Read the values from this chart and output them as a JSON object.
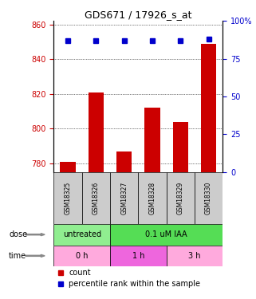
{
  "title": "GDS671 / 17926_s_at",
  "samples": [
    "GSM18325",
    "GSM18326",
    "GSM18327",
    "GSM18328",
    "GSM18329",
    "GSM18330"
  ],
  "bar_values": [
    781,
    821,
    787,
    812,
    804,
    849
  ],
  "percentile_values": [
    87,
    87,
    87,
    87,
    87,
    88
  ],
  "ylim_left": [
    775,
    862
  ],
  "ylim_right": [
    0,
    100
  ],
  "yticks_left": [
    780,
    800,
    820,
    840,
    860
  ],
  "yticks_right": [
    0,
    25,
    50,
    75,
    100
  ],
  "bar_color": "#cc0000",
  "blue_color": "#0000cc",
  "dose_labels": [
    {
      "label": "untreated",
      "start": 0,
      "end": 2,
      "color": "#90ee90"
    },
    {
      "label": "0.1 uM IAA",
      "start": 2,
      "end": 6,
      "color": "#55dd55"
    }
  ],
  "time_labels": [
    {
      "label": "0 h",
      "start": 0,
      "end": 2,
      "color": "#ffaadd"
    },
    {
      "label": "1 h",
      "start": 2,
      "end": 4,
      "color": "#ee66dd"
    },
    {
      "label": "3 h",
      "start": 4,
      "end": 6,
      "color": "#ffaadd"
    }
  ],
  "dose_label_text": "dose",
  "time_label_text": "time",
  "legend_count_color": "#cc0000",
  "legend_pct_color": "#0000cc"
}
